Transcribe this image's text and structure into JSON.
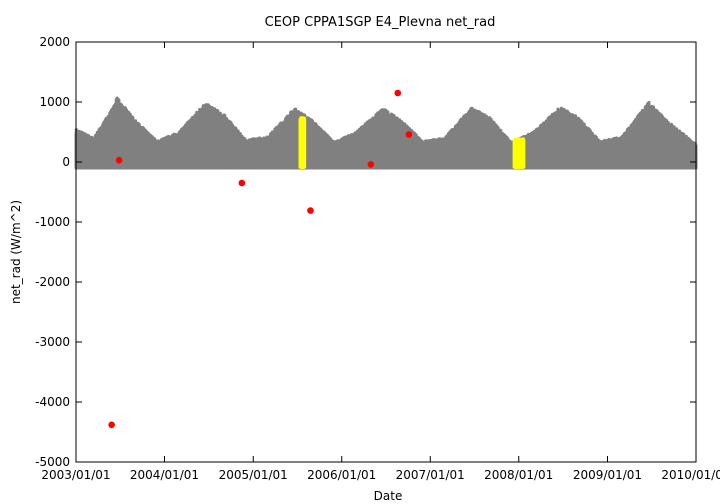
{
  "chart_data": {
    "type": "scatter",
    "title": "CEOP  CPPA1SGP E4_Plevna  net_rad",
    "xlabel": "Date",
    "ylabel": "net_rad (W/m^2)",
    "x_range": [
      "2003/01/01",
      "2010/01/01"
    ],
    "ylim": [
      -5000,
      2000
    ],
    "x_ticks": [
      "2003/01/01",
      "2004/01/01",
      "2005/01/01",
      "2006/01/01",
      "2007/01/01",
      "2008/01/01",
      "2009/01/01",
      "2010/01/01"
    ],
    "y_ticks": [
      2000,
      1000,
      0,
      -1000,
      -2000,
      -3000,
      -4000,
      -5000
    ],
    "grid": false,
    "legend": "none",
    "colors": {
      "series": "#808080",
      "flagged": "#ffff00",
      "outliers": "#ff0000",
      "axes": "#000000"
    },
    "series": [
      {
        "description_color": "gray",
        "daily_min": -100,
        "annual_max_envelope": [
          [
            "2003-01-01",
            550
          ],
          [
            "2003-03-15",
            400
          ],
          [
            "2003-06-01",
            900
          ],
          [
            "2003-06-20",
            1080
          ],
          [
            "2003-09-01",
            700
          ],
          [
            "2003-12-01",
            350
          ],
          [
            "2004-03-01",
            500
          ],
          [
            "2004-06-15",
            990
          ],
          [
            "2004-09-01",
            800
          ],
          [
            "2004-12-01",
            370
          ],
          [
            "2005-03-01",
            420
          ],
          [
            "2005-06-20",
            900
          ],
          [
            "2005-09-01",
            700
          ],
          [
            "2005-12-01",
            330
          ],
          [
            "2006-03-01",
            500
          ],
          [
            "2006-06-20",
            900
          ],
          [
            "2006-09-01",
            700
          ],
          [
            "2006-12-01",
            350
          ],
          [
            "2007-03-01",
            400
          ],
          [
            "2007-06-20",
            910
          ],
          [
            "2007-09-01",
            750
          ],
          [
            "2007-12-01",
            330
          ],
          [
            "2008-03-01",
            500
          ],
          [
            "2008-06-20",
            920
          ],
          [
            "2008-09-01",
            750
          ],
          [
            "2008-12-01",
            350
          ],
          [
            "2009-03-01",
            420
          ],
          [
            "2009-06-20",
            1000
          ],
          [
            "2009-09-01",
            700
          ],
          [
            "2009-12-31",
            300
          ]
        ]
      },
      {
        "description_color": "yellow",
        "ranges": [
          {
            "start": "2005-07-15",
            "end": "2005-07-30",
            "max": 750,
            "min": -80
          },
          {
            "start": "2007-12-15",
            "end": "2008-01-20",
            "max": 380,
            "min": -80
          }
        ]
      },
      {
        "description_color": "red",
        "points": [
          {
            "x": "2003-05-28",
            "y": -4380
          },
          {
            "x": "2003-06-28",
            "y": 30
          },
          {
            "x": "2004-11-15",
            "y": -350
          },
          {
            "x": "2005-08-25",
            "y": -810
          },
          {
            "x": "2006-05-01",
            "y": -40
          },
          {
            "x": "2006-08-20",
            "y": 1150
          },
          {
            "x": "2006-10-05",
            "y": 460
          }
        ]
      }
    ]
  }
}
